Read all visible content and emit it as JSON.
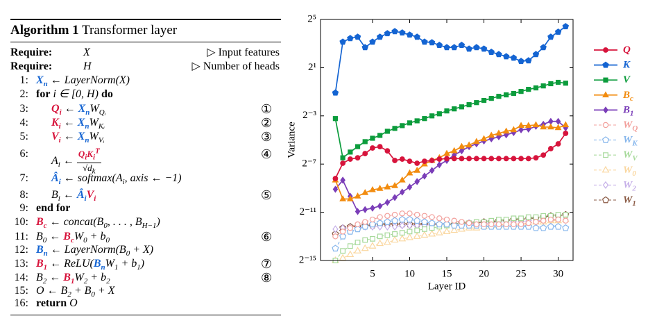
{
  "algorithm": {
    "label": "Algorithm 1",
    "title": "Transformer layer",
    "require": [
      {
        "kw": "Require:",
        "code": [
          {
            "t": "X"
          }
        ],
        "comment": "▷ Input features"
      },
      {
        "kw": "Require:",
        "code": [
          {
            "t": "H"
          }
        ],
        "comment": "▷ Number of heads"
      }
    ],
    "lines": [
      {
        "num": "1:",
        "code": [
          {
            "t": "X",
            "sub": "n",
            "c": "#1464d2"
          },
          {
            "t": " ← LayerNorm(X)"
          }
        ]
      },
      {
        "num": "2:",
        "code": [
          {
            "t": "for",
            "b": true
          },
          {
            "t": " i ∈ [0, H) "
          },
          {
            "t": "do",
            "b": true
          }
        ],
        "body": [
          {
            "num": "3:",
            "code": [
              {
                "t": "Q",
                "sub": "i",
                "c": "#d7143c"
              },
              {
                "t": " ← "
              },
              {
                "t": "X",
                "sub": "n",
                "c": "#1464d2"
              },
              {
                "t": "W",
                "sub": "Qᵢ"
              }
            ],
            "mark": "①"
          },
          {
            "num": "4:",
            "code": [
              {
                "t": "K",
                "sub": "i",
                "c": "#d7143c"
              },
              {
                "t": " ← "
              },
              {
                "t": "X",
                "sub": "n",
                "c": "#1464d2"
              },
              {
                "t": "W",
                "sub": "Kᵢ"
              }
            ],
            "mark": "②"
          },
          {
            "num": "5:",
            "code": [
              {
                "t": "V",
                "sub": "i",
                "c": "#d7143c"
              },
              {
                "t": " ← "
              },
              {
                "t": "X",
                "sub": "n",
                "c": "#1464d2"
              },
              {
                "t": "W",
                "sub": "Vᵢ"
              }
            ],
            "mark": "③"
          },
          {
            "num": "6:",
            "code": [
              {
                "t": "A",
                "sub": "i"
              },
              {
                "t": " ← "
              }
            ],
            "frac": {
              "num": [
                {
                  "t": "Q",
                  "sub": "i",
                  "c": "#d7143c"
                },
                {
                  "t": "K",
                  "sub": "i",
                  "sup": "T",
                  "c": "#d7143c"
                }
              ],
              "den": [
                {
                  "t": "√d",
                  "sub": "k"
                }
              ]
            },
            "mark": "④"
          },
          {
            "num": "7:",
            "code": [
              {
                "t": "Â",
                "sub": "i",
                "c": "#1464d2"
              },
              {
                "t": " ← softmax(A",
                "sub": "i"
              },
              {
                "t": ", axis ← −1)"
              }
            ]
          },
          {
            "num": "8:",
            "code": [
              {
                "t": "B",
                "sub": "i"
              },
              {
                "t": " ← "
              },
              {
                "t": "Â",
                "sub": "i",
                "c": "#1464d2"
              },
              {
                "t": "V",
                "sub": "i",
                "c": "#d7143c"
              }
            ],
            "mark": "⑤"
          }
        ]
      },
      {
        "num": "9:",
        "code": [
          {
            "t": "end for",
            "b": true
          }
        ]
      },
      {
        "num": "10:",
        "code": [
          {
            "t": "B",
            "sub": "c",
            "c": "#d7143c"
          },
          {
            "t": " ← concat(B",
            "sub": "0"
          },
          {
            "t": ", . . . , B",
            "sub": "H−1"
          },
          {
            "t": ")"
          }
        ]
      },
      {
        "num": "11:",
        "code": [
          {
            "t": "B",
            "sub": "0"
          },
          {
            "t": " ← "
          },
          {
            "t": "B",
            "sub": "c",
            "c": "#d7143c"
          },
          {
            "t": "W",
            "sub": "0"
          },
          {
            "t": " + b",
            "sub": "0"
          }
        ],
        "mark": "⑥"
      },
      {
        "num": "12:",
        "code": [
          {
            "t": "B",
            "sub": "n",
            "c": "#1464d2"
          },
          {
            "t": " ← LayerNorm(B",
            "sub": "0"
          },
          {
            "t": " + X)"
          }
        ]
      },
      {
        "num": "13:",
        "code": [
          {
            "t": "B",
            "sub": "1",
            "c": "#d7143c"
          },
          {
            "t": " ← ReLU("
          },
          {
            "t": "B",
            "sub": "n",
            "c": "#1464d2"
          },
          {
            "t": "W",
            "sub": "1"
          },
          {
            "t": " + b",
            "sub": "1"
          },
          {
            "t": ")"
          }
        ],
        "mark": "⑦"
      },
      {
        "num": "14:",
        "code": [
          {
            "t": "B",
            "sub": "2"
          },
          {
            "t": " ← "
          },
          {
            "t": "B",
            "sub": "1",
            "c": "#d7143c"
          },
          {
            "t": "W",
            "sub": "2"
          },
          {
            "t": " + b",
            "sub": "2"
          }
        ],
        "mark": "⑧"
      },
      {
        "num": "15:",
        "code": [
          {
            "t": "O ← B",
            "sub": "2"
          },
          {
            "t": " + B",
            "sub": "0"
          },
          {
            "t": " + X"
          }
        ]
      },
      {
        "num": "16:",
        "code": [
          {
            "t": "return",
            "b": true
          },
          {
            "t": " O"
          }
        ]
      }
    ]
  },
  "chart_data": {
    "type": "line",
    "xlabel": "Layer ID",
    "ylabel": "Variance",
    "x": [
      0,
      1,
      2,
      3,
      4,
      5,
      6,
      7,
      8,
      9,
      10,
      11,
      12,
      13,
      14,
      15,
      16,
      17,
      18,
      19,
      20,
      21,
      22,
      23,
      24,
      25,
      26,
      27,
      28,
      29,
      30,
      31
    ],
    "xlim": [
      -2,
      32
    ],
    "xticks": [
      5,
      10,
      15,
      20,
      25,
      30
    ],
    "yscale": "log",
    "log_base": 2,
    "ylim": [
      3.0517578125e-05,
      32
    ],
    "yticks": [
      {
        "value": 3.0517578125e-05,
        "label": "2⁻¹⁵"
      },
      {
        "value": 0.00048828125,
        "label": "2⁻¹¹"
      },
      {
        "value": 0.0078125,
        "label": "2⁻⁷"
      },
      {
        "value": 0.125,
        "label": "2⁻³"
      },
      {
        "value": 2,
        "label": "2¹"
      },
      {
        "value": 32,
        "label": "2⁵"
      }
    ],
    "grid": false,
    "legend": "outside right",
    "series": [
      {
        "name": "Q",
        "color": "#d7143c",
        "marker": "circle",
        "dashed": false,
        "values": [
          0.0034,
          0.0082,
          0.0104,
          0.0112,
          0.0143,
          0.0197,
          0.0213,
          0.0167,
          0.0096,
          0.0104,
          0.0092,
          0.0082,
          0.0092,
          0.0096,
          0.0104,
          0.0107,
          0.0107,
          0.0107,
          0.0107,
          0.0107,
          0.0107,
          0.0107,
          0.0107,
          0.0107,
          0.0107,
          0.0107,
          0.0107,
          0.0112,
          0.0131,
          0.019,
          0.025,
          0.0458
        ]
      },
      {
        "name": "K",
        "color": "#1464d2",
        "marker": "pentagon",
        "dashed": false,
        "values": [
          0.47,
          8.8,
          10.8,
          11.7,
          6.4,
          8.8,
          11.7,
          14.3,
          16.1,
          14.9,
          13.2,
          11.7,
          8.8,
          8.5,
          7.3,
          6.4,
          6.4,
          7.3,
          5.9,
          6.4,
          5.9,
          4.9,
          4.3,
          3.8,
          3.5,
          2.9,
          3.0,
          4.3,
          6.4,
          11.7,
          15.6,
          21.4
        ]
      },
      {
        "name": "V",
        "color": "#0c9c3c",
        "marker": "square",
        "dashed": false,
        "values": [
          0.107,
          0.0112,
          0.0156,
          0.0213,
          0.0284,
          0.0345,
          0.0406,
          0.0515,
          0.0608,
          0.0713,
          0.0836,
          0.094,
          0.107,
          0.125,
          0.141,
          0.166,
          0.187,
          0.21,
          0.238,
          0.268,
          0.304,
          0.342,
          0.384,
          0.418,
          0.454,
          0.51,
          0.574,
          0.624,
          0.7,
          0.795,
          0.86,
          0.82
        ]
      },
      {
        "name": "B",
        "sub": "c",
        "color": "#f28c0f",
        "marker": "triangle",
        "dashed": false,
        "values": [
          0.0031,
          0.00105,
          0.00105,
          0.00123,
          0.0015,
          0.00177,
          0.00191,
          0.00208,
          0.00224,
          0.0031,
          0.00465,
          0.0054,
          0.0078,
          0.0096,
          0.0112,
          0.0143,
          0.0167,
          0.0213,
          0.0232,
          0.0284,
          0.0333,
          0.0406,
          0.0458,
          0.0515,
          0.056,
          0.0713,
          0.0713,
          0.0743,
          0.0656,
          0.0656,
          0.0629,
          0.0743
        ]
      },
      {
        "name": "B",
        "sub": "1",
        "color": "#7a3db8",
        "marker": "diamond",
        "dashed": false,
        "values": [
          0.00183,
          0.0031,
          0.00123,
          0.00051,
          0.00057,
          0.00062,
          0.0007,
          0.00086,
          0.00114,
          0.00156,
          0.00208,
          0.00286,
          0.00392,
          0.0054,
          0.0075,
          0.0096,
          0.0131,
          0.0167,
          0.0213,
          0.025,
          0.0294,
          0.0333,
          0.0375,
          0.042,
          0.0477,
          0.056,
          0.0583,
          0.0684,
          0.077,
          0.091,
          0.091,
          0.0629
        ]
      },
      {
        "name": "W",
        "sub": "Q",
        "color": "#f2a09c",
        "marker": "circle",
        "dashed": true,
        "values": [
          0.000122,
          0.000161,
          0.000198,
          0.000244,
          0.00028,
          0.000322,
          0.00037,
          0.000397,
          0.000425,
          0.000456,
          0.000456,
          0.000425,
          0.000397,
          0.00037,
          0.000345,
          0.000322,
          0.000301,
          0.00028,
          0.000262,
          0.000244,
          0.000244,
          0.000244,
          0.000244,
          0.000244,
          0.000244,
          0.000244,
          0.000262,
          0.00028,
          0.000301,
          0.000322,
          0.000322,
          0.000301
        ]
      },
      {
        "name": "W",
        "sub": "K",
        "color": "#86b6ec",
        "marker": "pentagon",
        "dashed": true,
        "values": [
          6.1e-05,
          0.000122,
          0.000161,
          0.000185,
          0.000213,
          0.000244,
          0.000262,
          0.00028,
          0.000301,
          0.000322,
          0.000322,
          0.000301,
          0.00028,
          0.000262,
          0.000244,
          0.000244,
          0.000228,
          0.000228,
          0.000228,
          0.000228,
          0.000213,
          0.000213,
          0.000213,
          0.000213,
          0.000213,
          0.000213,
          0.000213,
          0.000198,
          0.000198,
          0.000213,
          0.000213,
          0.000198
        ]
      },
      {
        "name": "W",
        "sub": "V",
        "color": "#a6d99a",
        "marker": "square",
        "dashed": true,
        "values": [
          3.05e-05,
          5.3e-05,
          7e-05,
          8.6e-05,
          9.9e-05,
          0.000106,
          0.000122,
          0.000131,
          0.00014,
          0.00015,
          0.000161,
          0.000173,
          0.000185,
          0.000198,
          0.000213,
          0.000228,
          0.000244,
          0.000262,
          0.000262,
          0.00028,
          0.00028,
          0.000301,
          0.000322,
          0.000322,
          0.000345,
          0.000345,
          0.00037,
          0.00037,
          0.000397,
          0.000397,
          0.000425,
          0.000425
        ]
      },
      {
        "name": "W",
        "sub": "0",
        "color": "#fad7a0",
        "marker": "triangle",
        "dashed": true,
        "values": [
          3.05e-05,
          3.5e-05,
          4.3e-05,
          5.3e-05,
          6.1e-05,
          7e-05,
          8.1e-05,
          8.6e-05,
          9.9e-05,
          0.000106,
          0.000114,
          0.000122,
          0.000131,
          0.00014,
          0.00015,
          0.000161,
          0.000173,
          0.000185,
          0.000198,
          0.000198,
          0.000213,
          0.000228,
          0.000228,
          0.000244,
          0.000244,
          0.000262,
          0.000262,
          0.00028,
          0.00028,
          0.000301,
          0.000301,
          0.000322
        ]
      },
      {
        "name": "W",
        "sub": "2",
        "color": "#c6b0e8",
        "marker": "diamond",
        "dashed": true,
        "values": [
          0.000185,
          0.000198,
          0.000198,
          0.000198,
          0.000213,
          0.000213,
          0.000213,
          0.000213,
          0.000213,
          0.000228,
          0.000228,
          0.000228,
          0.000228,
          0.000244,
          0.000244,
          0.000244,
          0.000244,
          0.000244,
          0.000262,
          0.000262,
          0.000262,
          0.000262,
          0.00028,
          0.00028,
          0.00028,
          0.00028,
          0.000301,
          0.000301,
          0.000301,
          0.000301,
          0.000322,
          0.000322
        ]
      },
      {
        "name": "W",
        "sub": "1",
        "color": "#8a5a44",
        "marker": "pentagon",
        "dashed": true,
        "values": [
          0.00014,
          0.000198,
          0.000213,
          0.000213,
          0.000228,
          0.000228,
          0.000244,
          0.000244,
          0.000244,
          0.000244,
          0.000244,
          0.000244,
          0.000244,
          0.000244,
          0.000244,
          0.000244,
          0.000244,
          0.000262,
          0.000262,
          0.000262,
          0.00028,
          0.00028,
          0.000301,
          0.000301,
          0.000322,
          0.000322,
          0.000345,
          0.000345,
          0.00037,
          0.000397,
          0.000397,
          0.000425
        ]
      }
    ]
  }
}
